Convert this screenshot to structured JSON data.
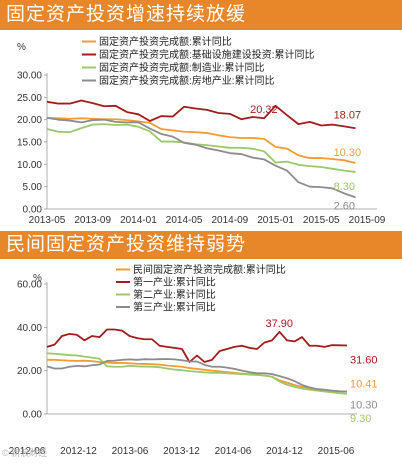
{
  "banners": {
    "top": "固定资产投资增速持续放缓",
    "bottom": "民间固定资产投资维持弱势"
  },
  "watermark": "© 新浪财经",
  "chart_data": [
    {
      "type": "line",
      "title": "固定资产投资增速持续放缓",
      "ylabel": "%",
      "ylim": [
        0,
        30
      ],
      "yticks": [
        "0.00",
        "5.00",
        "10.00",
        "15.00",
        "20.00",
        "25.00",
        "30.00"
      ],
      "xlim": [
        0,
        28
      ],
      "xtick_labels": [
        "2013-05",
        "2013-09",
        "2014-01",
        "2014-05",
        "2014-09",
        "2015-01",
        "2015-05",
        "2015-09"
      ],
      "legend_position": "top",
      "series": [
        {
          "name": "固定资产投资完成额:累计同比",
          "color": "#f39c32",
          "values": [
            20.4,
            20.3,
            20.2,
            20.3,
            20.2,
            20.1,
            20.1,
            19.9,
            19.6,
            19.3,
            17.9,
            17.6,
            17.3,
            17.2,
            17.0,
            16.5,
            16.1,
            15.9,
            15.9,
            15.7,
            13.9,
            13.5,
            12.0,
            11.4,
            11.4,
            11.2,
            10.9,
            10.3
          ],
          "end_label": "10.30"
        },
        {
          "name": "固定资产投资完成额:基础设施建设投资:累计同比",
          "color": "#a31b1b",
          "values": [
            24.0,
            23.6,
            23.6,
            24.3,
            23.7,
            23.0,
            23.1,
            21.7,
            21.2,
            19.7,
            20.8,
            20.7,
            22.9,
            22.5,
            22.2,
            21.5,
            21.3,
            20.1,
            20.6,
            20.32,
            23.1,
            21.0,
            19.0,
            19.5,
            18.7,
            18.9,
            18.5,
            18.07
          ],
          "labels": [
            {
              "index": 19,
              "text": "20.32"
            }
          ],
          "end_label": "18.07"
        },
        {
          "name": "固定资产投资完成额:制造业:累计同比",
          "color": "#9bc86b",
          "values": [
            17.9,
            17.3,
            17.2,
            18.1,
            18.9,
            19.0,
            18.8,
            18.9,
            18.4,
            17.4,
            15.1,
            15.1,
            14.9,
            14.5,
            14.3,
            14.0,
            13.7,
            13.7,
            13.5,
            12.9,
            10.4,
            10.6,
            9.9,
            9.6,
            9.4,
            9.0,
            8.6,
            8.3
          ],
          "end_label": "8.30"
        },
        {
          "name": "固定资产投资完成额:房地产业:累计同比",
          "color": "#8c8c8c",
          "values": [
            20.4,
            20.0,
            19.8,
            19.4,
            19.9,
            20.0,
            19.5,
            19.4,
            19.4,
            18.0,
            16.8,
            16.2,
            14.8,
            14.4,
            13.6,
            13.1,
            12.5,
            12.3,
            11.5,
            11.1,
            9.7,
            8.6,
            6.0,
            5.0,
            4.9,
            4.6,
            3.5,
            2.6
          ],
          "end_label": "2.60"
        }
      ]
    },
    {
      "type": "line",
      "title": "民间固定资产投资维持弱势",
      "ylabel": "%",
      "ylim": [
        0,
        60
      ],
      "yticks": [
        "0.00",
        "20.00",
        "40.00",
        "60.00"
      ],
      "xlim": [
        0,
        40
      ],
      "xtick_labels": [
        "2012-06",
        "2012-12",
        "2013-06",
        "2013-12",
        "2014-06",
        "2014-12",
        "2015-06"
      ],
      "legend_position": "top",
      "series": [
        {
          "name": "民间固定资产投资完成额:累计同比",
          "color": "#f39c32",
          "values": [
            25.0,
            25.0,
            24.8,
            24.6,
            24.5,
            24.6,
            24.4,
            24.0,
            23.8,
            23.5,
            23.6,
            23.4,
            23.2,
            23.1,
            23.0,
            22.8,
            22.4,
            22.1,
            21.8,
            21.2,
            20.8,
            20.4,
            20.0,
            19.7,
            19.3,
            19.0,
            18.6,
            18.4,
            18.2,
            17.7,
            17.2,
            15.5,
            14.5,
            13.4,
            12.5,
            11.8,
            11.4,
            11.1,
            10.7,
            10.5,
            10.41
          ],
          "end_label": "10.41"
        },
        {
          "name": "第一产业:累计同比",
          "color": "#a31b1b",
          "values": [
            31.0,
            32.0,
            36.0,
            37.0,
            36.5,
            34.0,
            36.0,
            35.5,
            39.0,
            39.0,
            38.5,
            36.0,
            35.0,
            34.5,
            34.5,
            31.5,
            31.0,
            30.5,
            30.0,
            24.0,
            27.0,
            24.0,
            25.0,
            29.0,
            30.0,
            31.0,
            31.5,
            30.5,
            30.0,
            33.0,
            34.0,
            37.9,
            34.0,
            33.5,
            35.5,
            31.5,
            31.5,
            31.0,
            31.8,
            31.7,
            31.6
          ],
          "labels": [
            {
              "index": 31,
              "text": "37.90"
            }
          ],
          "end_label": "31.60"
        },
        {
          "name": "第二产业:累计同比",
          "color": "#9bc86b",
          "values": [
            28.0,
            27.8,
            27.5,
            27.2,
            27.0,
            26.5,
            26.0,
            25.5,
            22.0,
            21.8,
            21.8,
            22.2,
            22.0,
            21.9,
            21.8,
            21.6,
            21.0,
            20.5,
            20.2,
            19.8,
            19.5,
            19.2,
            19.0,
            19.0,
            18.8,
            18.6,
            18.4,
            18.2,
            18.0,
            17.8,
            17.2,
            15.0,
            13.5,
            12.5,
            11.8,
            11.2,
            10.8,
            10.4,
            10.0,
            9.6,
            9.3
          ],
          "end_label": "9.30"
        },
        {
          "name": "第三产业:累计同比",
          "color": "#8c8c8c",
          "values": [
            22.0,
            21.0,
            21.0,
            21.8,
            22.2,
            22.0,
            22.5,
            22.8,
            24.5,
            24.6,
            25.0,
            25.2,
            25.0,
            25.3,
            25.2,
            25.3,
            25.4,
            25.2,
            24.8,
            24.3,
            24.2,
            22.7,
            21.8,
            21.8,
            21.4,
            20.8,
            20.0,
            19.3,
            18.8,
            18.8,
            18.4,
            17.5,
            16.5,
            15.2,
            13.4,
            12.3,
            11.5,
            11.2,
            10.8,
            10.5,
            10.3
          ],
          "end_label": "10.30"
        }
      ]
    }
  ]
}
